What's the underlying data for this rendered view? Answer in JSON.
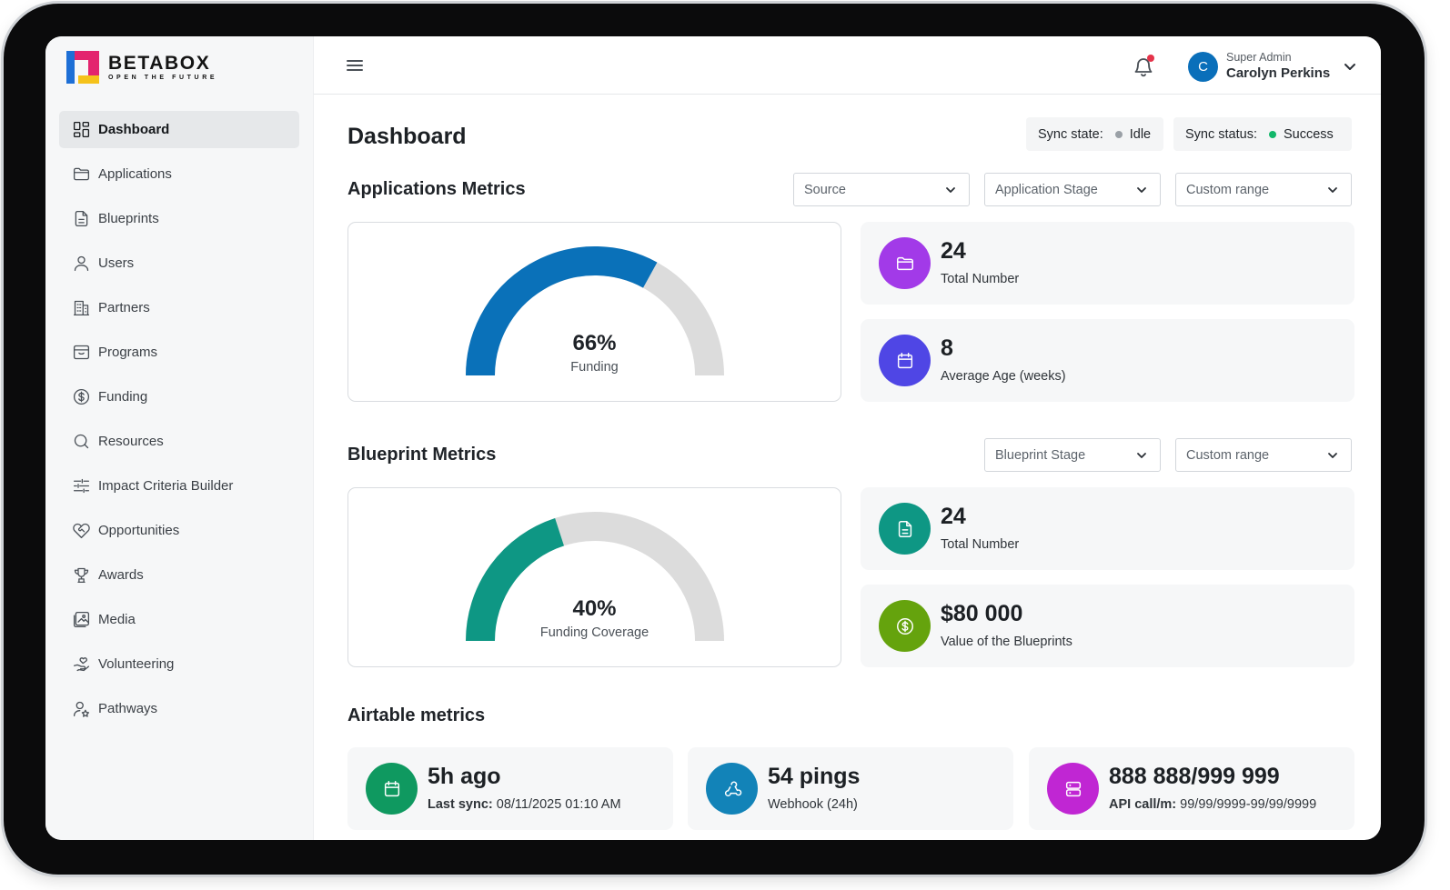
{
  "brand": {
    "name": "BETABOX",
    "tagline": "OPEN THE FUTURE"
  },
  "sidebar": {
    "items": [
      {
        "label": "Dashboard",
        "icon": "dashboard-grid-icon",
        "active": true
      },
      {
        "label": "Applications",
        "icon": "folder-icon"
      },
      {
        "label": "Blueprints",
        "icon": "document-icon"
      },
      {
        "label": "Users",
        "icon": "user-icon"
      },
      {
        "label": "Partners",
        "icon": "building-icon"
      },
      {
        "label": "Programs",
        "icon": "archive-icon"
      },
      {
        "label": "Funding",
        "icon": "dollar-circle-icon"
      },
      {
        "label": "Resources",
        "icon": "search-icon"
      },
      {
        "label": "Impact Criteria Builder",
        "icon": "sliders-icon"
      },
      {
        "label": "Opportunities",
        "icon": "heart-handshake-icon"
      },
      {
        "label": "Awards",
        "icon": "trophy-icon"
      },
      {
        "label": "Media",
        "icon": "image-icon"
      },
      {
        "label": "Volunteering",
        "icon": "hand-heart-icon"
      },
      {
        "label": "Pathways",
        "icon": "user-star-icon"
      }
    ]
  },
  "topbar": {
    "user": {
      "initial": "C",
      "role": "Super Admin",
      "name": "Carolyn Perkins"
    }
  },
  "page": {
    "title": "Dashboard",
    "sync_state": {
      "label": "Sync state:",
      "value": "Idle",
      "color": "#9aa0a6"
    },
    "sync_status": {
      "label": "Sync status:",
      "value": "Success",
      "color": "#12b76a"
    }
  },
  "applications": {
    "title": "Applications Metrics",
    "filters": {
      "source": "Source",
      "stage": "Application Stage",
      "range": "Custom range"
    },
    "gauge": {
      "value_text": "66%",
      "fraction": 0.66,
      "label": "Funding",
      "color": "#0a71b9"
    },
    "stats": [
      {
        "value": "24",
        "label": "Total Number",
        "icon": "folder-icon",
        "color": "#a23ae8"
      },
      {
        "value": "8",
        "label": "Average Age (weeks)",
        "icon": "calendar-icon",
        "color": "#4f46e5"
      }
    ]
  },
  "blueprints": {
    "title": "Blueprint Metrics",
    "filters": {
      "stage": "Blueprint Stage",
      "range": "Custom range"
    },
    "gauge": {
      "value_text": "40%",
      "fraction": 0.4,
      "label": "Funding Coverage",
      "color": "#0e9784"
    },
    "stats": [
      {
        "value": "24",
        "label": "Total Number",
        "icon": "document-icon",
        "color": "#0e9784"
      },
      {
        "value": "$80 000",
        "label": "Value of the Blueprints",
        "icon": "dollar-circle-icon",
        "color": "#65a30d"
      }
    ]
  },
  "airtable": {
    "title": "Airtable metrics",
    "stats": [
      {
        "value": "5h ago",
        "label_bold": "Last sync:",
        "label": "08/11/2025 01:10 AM",
        "icon": "calendar-icon",
        "color": "#0f9960"
      },
      {
        "value": "54 pings",
        "label_bold": "",
        "label": "Webhook (24h)",
        "icon": "webhook-icon",
        "color": "#1283b8"
      },
      {
        "value": "888 888/999 999",
        "label_bold": "API call/m:",
        "label": "99/99/9999-99/99/9999",
        "icon": "server-icon",
        "color": "#c026d3"
      }
    ]
  }
}
